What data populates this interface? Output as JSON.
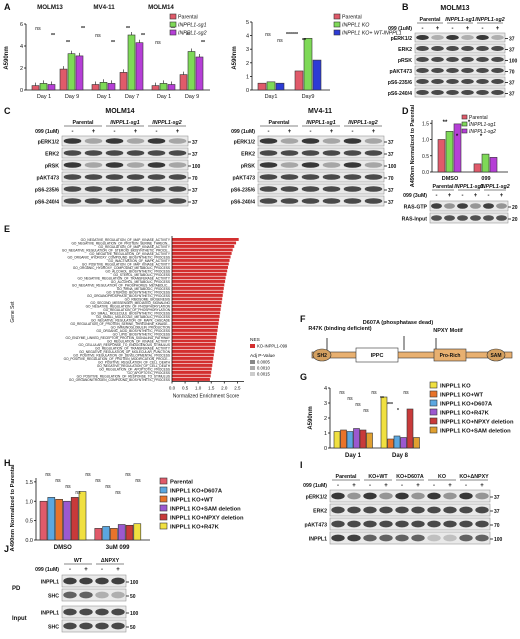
{
  "panels": {
    "A": {
      "label": "A",
      "left_chart": {
        "ylabel": "A590nm",
        "cells": [
          "MOLM13",
          "MV4-11",
          "MOLM14"
        ],
        "days": [
          [
            "Day 1",
            "Day 9"
          ],
          [
            "Day 1",
            "Day 7"
          ],
          [
            "Day 1",
            "Day 9"
          ]
        ],
        "legend": [
          "Parental",
          "INPPL1-sg1",
          "INPPL1-sg2"
        ],
        "yticks": [
          "0",
          "2",
          "4",
          "6"
        ],
        "sig": [
          "ns",
          "**",
          "**",
          "**",
          "ns",
          "**",
          "**",
          "**",
          "ns",
          "**",
          "**",
          "**"
        ]
      },
      "right_chart": {
        "ylabel": "A590nm",
        "days": [
          "Day1",
          "Day9"
        ],
        "legend": [
          "Parental",
          "INPPL1 KO",
          "INPPL1 KO+ WT-INPPL1"
        ],
        "yticks": [
          "0",
          "1",
          "2",
          "3",
          "4",
          "5"
        ],
        "sig": [
          "ns",
          "ns",
          "******",
          "**"
        ]
      }
    },
    "B": {
      "label": "B",
      "title": "MOLM13",
      "drug": "099 (1uM)",
      "groups": [
        "Parental",
        "INPPL1-sg1",
        "INPPL1-sg2"
      ],
      "signs": [
        "-",
        "+",
        "-",
        "+",
        "-",
        "+"
      ],
      "rows": [
        "pERK1/2",
        "ERK2",
        "pRSK",
        "pAKT473",
        "pS6-235/6",
        "pS6-240/4"
      ],
      "mw": [
        "37",
        "37",
        "100",
        "70",
        "37",
        "37"
      ]
    },
    "C": {
      "label": "C",
      "left": {
        "title": "MOLM14",
        "drug": "099 (1uM)",
        "groups": [
          "Parental",
          "INPPL1-sg1",
          "INPPL1-sg2"
        ],
        "signs": [
          "-",
          "+",
          "-",
          "+",
          "-",
          "+"
        ],
        "rows": [
          "pERK1/2",
          "ERK2",
          "pRSK",
          "pAKT473",
          "pS6-235/6",
          "pS6-240/4"
        ],
        "mw": [
          "37",
          "37",
          "100",
          "70",
          "37",
          "37"
        ]
      },
      "right": {
        "title": "MV4-11",
        "drug": "099 (1uM)",
        "groups": [
          "Parental",
          "INPPL1-sg1",
          "INPPL1-sg2"
        ],
        "signs": [
          "-",
          "+",
          "-",
          "+",
          "-",
          "+"
        ],
        "rows": [
          "pERK1/2",
          "ERK2",
          "pRSK",
          "pAKT473",
          "pS6-235/6",
          "pS6-240/4"
        ],
        "mw": [
          "37",
          "37",
          "100",
          "70",
          "37",
          "37"
        ]
      }
    },
    "D": {
      "label": "D",
      "ylabel": "A490nm Normalized to Parental",
      "groups": [
        "DMSO",
        "099"
      ],
      "legend": [
        "Parental",
        "INPPL1-sg1",
        "INPPL1-sg2"
      ],
      "yticks": [
        "0.0",
        "0.5",
        "1.0",
        "1.5"
      ],
      "sig": [
        "**",
        "*",
        "*",
        "*"
      ],
      "blot": {
        "groups": [
          "Parental",
          "INPPL1-sg1",
          "INPPL1-sg2"
        ],
        "drug": "099 (3uM)",
        "signs": [
          "-",
          "+",
          "-",
          "+",
          "-",
          "+"
        ],
        "rows": [
          "RAS-GTP",
          "RAS-Input"
        ],
        "mw": [
          "20",
          "20"
        ]
      }
    },
    "E": {
      "label": "E",
      "ylabel": "Gene Set",
      "xlabel": "Normalized Enrichment Score",
      "xticks": [
        "0.0",
        "0.5",
        "1.0",
        "1.5",
        "2.0",
        "2.5"
      ],
      "legend_title_nes": "NES",
      "legend_nes_item": "KO-INPPL1-099",
      "legend_title_p": "Adj P-Value",
      "legend_p_items": [
        "0.0005",
        "0.0010",
        "0.0015"
      ],
      "genesets": [
        "GO_NEGATIVE_REGULATION_OF_MAP_KINASE_ACTIVITY",
        "GO_NEGATIVE_REGULATION_OF_PROTEIN_SERINE_THREON...",
        "GO_REGULATION_OF_MAP_KINASE_ACTIVITY",
        "GO_NEGATIVE_REGULATION_OF_STEROID_BIOSYNTHETIC_PROCE...",
        "GO_NEGATIVE_REGULATION_OF_KINASE_ACTIVITY",
        "GO_ORGANIC_HYDROXY_COMPOUND_BIOSYNTHETIC_PROCESS",
        "GO_INACTIVATION_OF_MAPK_ACTIVITY",
        "GO_POSITIVE_REGULATION_OF_MAP_KINASE_ACTIVITY",
        "GO_ORGANIC_HYDROXY_COMPOUND_METABOLIC_PROCESS",
        "GO_ALCOHOL_BIOSYNTHETIC_PROCESS",
        "GO_STEROL_METABOLIC_PROCESS",
        "GO_NEGATIVE_REGULATION_OF_TRANSFERASE_ACTIVITY",
        "GO_ALCOHOL_METABOLIC_PROCESS",
        "GO_NEGATIVE_REGULATION_OF_PHOSPHORUS_METABOLIC...",
        "GO_RRNA_METABOLIC_PROCESS",
        "GO_STEROID_BIOSYNTHETIC_PROCESS",
        "GO_ORGANOPHOSPHATE_BIOSYNTHETIC_PROCESS",
        "GO_RIBOSOME_BIOGENESIS",
        "GO_SECOND_MESSENGER_MEDIATED_SIGNALING",
        "GO_NEGATIVE_REGULATION_OF_PHOSPHORYLATION",
        "GO_REGULATION_OF_PHOSPHORYLATION",
        "GO_SMALL_MOLECULE_BIOSYNTHETIC_PROCESS",
        "GO_SMALL_MOLECULE_METABOLIC_PROCESS",
        "GO_NEGATIVE_REGULATION_OF_MAPK_CASCADE",
        "GO_REGULATION_OF_PROTEIN_SERINE_THREONINE_KINASE...",
        "GO_IMMUNOGLOBULIN_PRODUCTION",
        "GO_ORGANIC_ACID_BIOSYNTHETIC_PROCESS",
        "GO_LIPID_BIOSYNTHETIC_PROCESS",
        "GO_ENZYME_LINKED_RECEPTOR_PROTEIN_SIGNALING_PATHWAY",
        "GO_REGULATION_OF_KINASE_ACTIVITY",
        "GO_CELLULAR_RESPONSE_TO_ENDOGENOUS_STIMULUS",
        "GO_REGULATION_OF_TRANSFERASE_ACTIVITY",
        "GO_NEGATIVE_REGULATION_OF_MOLECULAR_FUNCTION",
        "GO_POSITIVE_REGULATION_OF_DEVELOPMENTAL_PROCESS",
        "GO_POSITIVE_REGULATION_OF_PROTEIN_MODIFICATION_PROCE...",
        "GO_POSITIVE_REGULATION_OF_CELL_DEATH",
        "GO_NEGATIVE_REGULATION_OF_CELL_DEATH",
        "GO_REGULATION_OF_APOPTOTIC_PROCESS",
        "GO_APOPTOTIC_PROCESS",
        "GO_POSITIVE_REGULATION_OF_RESPONSE_TO_STIMULUS",
        "GO_ORGANONITROGEN_COMPOUND_BIOSYNTHETIC_PROCESS"
      ],
      "nes_values": [
        2.55,
        2.45,
        2.38,
        2.32,
        2.28,
        2.24,
        2.2,
        2.17,
        2.14,
        2.11,
        2.08,
        2.05,
        2.03,
        2.0,
        1.98,
        1.96,
        1.94,
        1.92,
        1.9,
        1.88,
        1.86,
        1.84,
        1.82,
        1.8,
        1.78,
        1.76,
        1.74,
        1.72,
        1.7,
        1.68,
        1.66,
        1.64,
        1.62,
        1.6,
        1.58,
        1.56,
        1.54,
        1.52,
        1.5,
        1.48,
        1.45
      ]
    },
    "F": {
      "label": "F",
      "annotations": [
        "R47K (binding deficient)",
        "D607A (phosphatase dead)",
        "NPXY Motif"
      ],
      "domains": [
        "SH2",
        "IPPC",
        "Pro-Rich",
        "SAM"
      ]
    },
    "G": {
      "label": "G",
      "ylabel": "A590nm",
      "days": [
        "Day 1",
        "Day 8"
      ],
      "yticks": [
        "0",
        "1",
        "2",
        "3",
        "4"
      ],
      "legend": [
        "INPPL1 KO",
        "INPPL1 KO+WT",
        "INPPL1 KO+D607A",
        "INPPL1 KO+R47K",
        "INPPL1 KO+NPXY deletion",
        "INPPL1 KO+SAM deletion"
      ],
      "sig": [
        "ns",
        "ns",
        "ns",
        "ns",
        "ns",
        "**",
        "***",
        "*",
        "ns"
      ]
    },
    "H": {
      "label": "H",
      "ylabel": "A490nm Normalized to Parental",
      "groups": [
        "DMSO",
        "3uM 099"
      ],
      "yticks": [
        "0.0",
        "0.5",
        "1.0",
        "1.5"
      ],
      "legend": [
        "Parental",
        "INPPL1 KO+D607A",
        "INPPL1 KO+WT",
        "INPPL1 KO+SAM deletion",
        "INPPL1 KO+NPXY deletion",
        "INPPL1 KO+R47K"
      ],
      "sig": [
        "ns",
        "ns",
        "ns",
        "ns",
        "ns",
        "ns",
        "ns",
        "ns",
        "ns",
        "ns"
      ]
    },
    "I": {
      "label": "I",
      "drug": "099 (1uM)",
      "groups": [
        "Parental",
        "KO+WT",
        "KO+D607A",
        "KO",
        "KO+ΔNPXY"
      ],
      "signs": [
        "-",
        "+",
        "-",
        "+",
        "-",
        "+",
        "-",
        "+",
        "-",
        "+"
      ],
      "rows": [
        "pERK1/2",
        "ERK2",
        "pAKT473",
        "INPPL1"
      ],
      "mw": [
        "37",
        "37",
        "70",
        "100"
      ]
    },
    "J": {
      "label": "J",
      "drug": "099 (1uM)",
      "groups": [
        "WT",
        "ΔNPXY"
      ],
      "signs": [
        "-",
        "+",
        "-",
        "+"
      ],
      "pd_label": "PD",
      "input_label": "Input",
      "pd_rows": [
        "INPPL1",
        "SHC"
      ],
      "input_rows": [
        "INPPL1",
        "SHC"
      ],
      "mw_pd": [
        "100",
        "50"
      ],
      "mw_input": [
        "100",
        "50"
      ]
    }
  },
  "colors": {
    "parental": "#e05a6a",
    "sg1": "#7ed957",
    "sg2": "#b53fd6",
    "ko": "#f0e040",
    "ko_wt": "#e8732a",
    "ko_d607a": "#5ba7e0",
    "ko_r47k": "#9b59d0",
    "ko_npxy": "#c83a3a",
    "ko_sam": "#e0a030",
    "nes_bar": "#d32f2f"
  }
}
